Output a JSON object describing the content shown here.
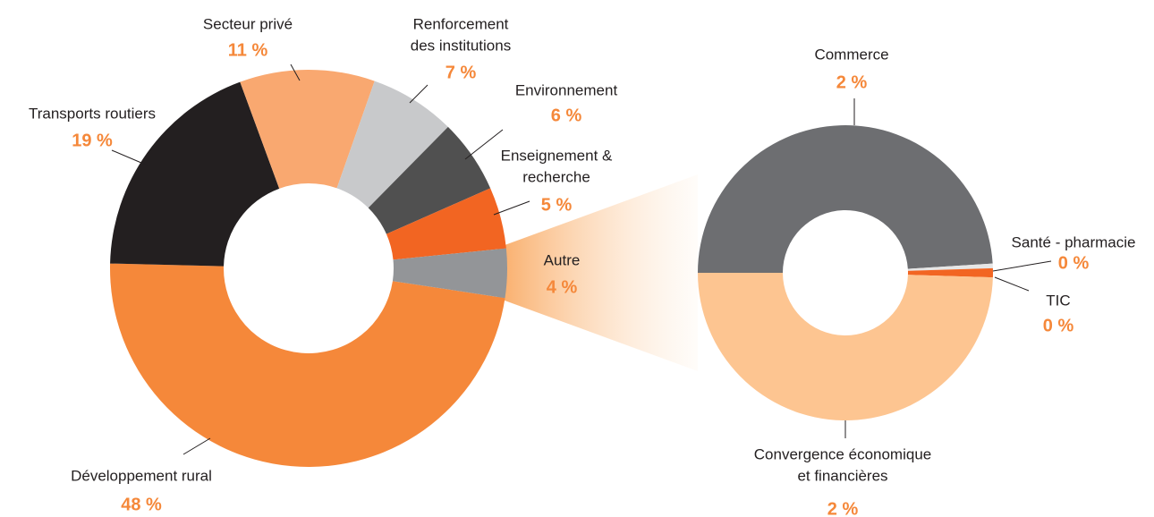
{
  "chart_data": [
    {
      "type": "pie",
      "categories": [
        "Développement rural",
        "Transports routiers",
        "Secteur privé",
        [
          "Renforcement",
          "des institutions"
        ],
        "Environnement",
        [
          "Enseignement &",
          "recherche"
        ],
        "Autre"
      ],
      "values": [
        48,
        19,
        11,
        7,
        6,
        5,
        4
      ],
      "value_labels": [
        "48 %",
        "19 %",
        "11 %",
        "7 %",
        "6 %",
        "5 %",
        "4 %"
      ],
      "colors": [
        "#f5883a",
        "#231f20",
        "#f9a870",
        "#c8c9cb",
        "#505050",
        "#f26522",
        "#939598"
      ]
    },
    {
      "type": "pie",
      "categories": [
        "Commerce",
        "Santé - pharmacie",
        "TIC",
        [
          "Convergence économique",
          "et financières"
        ]
      ],
      "values": [
        1.96,
        0.02,
        0.04,
        1.98
      ],
      "value_labels": [
        "2 %",
        "0 %",
        "0 %",
        "2 %"
      ],
      "colors": [
        "#6d6e71",
        "#e6e6e6",
        "#f26522",
        "#fdc591"
      ]
    }
  ]
}
